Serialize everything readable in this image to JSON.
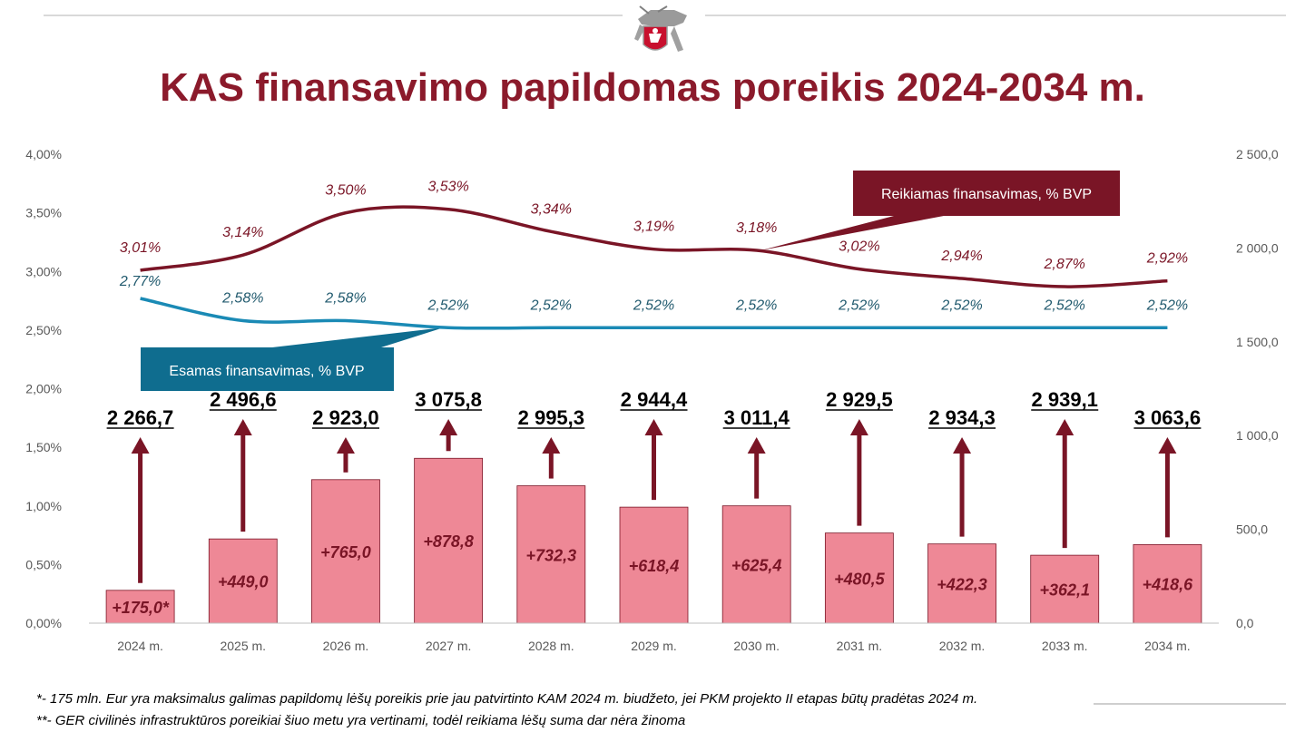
{
  "title": "KAS finansavimo papildomas poreikis 2024-2034 m.",
  "chart_data": {
    "type": "bar",
    "categories": [
      "2024 m.",
      "2025 m.",
      "2026 m.",
      "2027 m.",
      "2028 m.",
      "2029 m.",
      "2030 m.",
      "2031 m.",
      "2032 m.",
      "2033 m.",
      "2034 m."
    ],
    "bar_values": [
      175.0,
      449.0,
      765.0,
      878.8,
      732.3,
      618.4,
      625.4,
      480.5,
      422.3,
      362.1,
      418.6
    ],
    "bar_labels": [
      "+175,0*",
      "+449,0",
      "+765,0",
      "+878,8",
      "+732,3",
      "+618,4",
      "+625,4",
      "+480,5",
      "+422,3",
      "+362,1",
      "+418,6"
    ],
    "total_labels": [
      "2 266,7",
      "2 496,6",
      "2 923,0",
      "3 075,8",
      "2 995,3",
      "2 944,4",
      "3 011,4",
      "2 929,5",
      "2 934,3",
      "2 939,1",
      "3 063,6"
    ],
    "series": [
      {
        "name": "Reikiamas finansavimas, % BVP",
        "values": [
          3.01,
          3.14,
          3.5,
          3.53,
          3.34,
          3.19,
          3.18,
          3.02,
          2.94,
          2.87,
          2.92
        ],
        "labels": [
          "3,01%",
          "3,14%",
          "3,50%",
          "3,53%",
          "3,34%",
          "3,19%",
          "3,18%",
          "3,02%",
          "2,94%",
          "2,87%",
          "2,92%"
        ]
      },
      {
        "name": "Esamas finansavimas, % BVP",
        "values": [
          2.77,
          2.58,
          2.58,
          2.52,
          2.52,
          2.52,
          2.52,
          2.52,
          2.52,
          2.52,
          2.52
        ],
        "labels": [
          "2,77%",
          "2,58%",
          "2,58%",
          "2,52%",
          "2,52%",
          "2,52%",
          "2,52%",
          "2,52%",
          "2,52%",
          "2,52%",
          "2,52%"
        ]
      }
    ],
    "y_left": {
      "min": 0,
      "max": 4.0,
      "ticks": [
        "0,00%",
        "0,50%",
        "1,00%",
        "1,50%",
        "2,00%",
        "2,50%",
        "3,00%",
        "3,50%",
        "4,00%"
      ]
    },
    "y_right": {
      "min": 0,
      "max": 2500,
      "ticks": [
        "0,0",
        "500,0",
        "1 000,0",
        "1 500,0",
        "2 000,0",
        "2 500,0"
      ]
    },
    "colors": {
      "bar": "#ee8896",
      "required_line": "#7a1526",
      "existing_line": "#1a8ab5",
      "existing_callout": "#0f6d8f",
      "arrow": "#7a1526",
      "title": "#8b1a2b"
    }
  },
  "footnotes": [
    "*- 175 mln. Eur yra maksimalus galimas papildomų lėšų poreikis prie jau patvirtinto KAM 2024 m. biudžeto, jei PKM projekto II etapas būtų pradėtas 2024 m.",
    "**- GER civilinės infrastruktūros poreikiai šiuo metu yra vertinami, todėl reikiama lėšų suma dar nėra žinoma"
  ]
}
